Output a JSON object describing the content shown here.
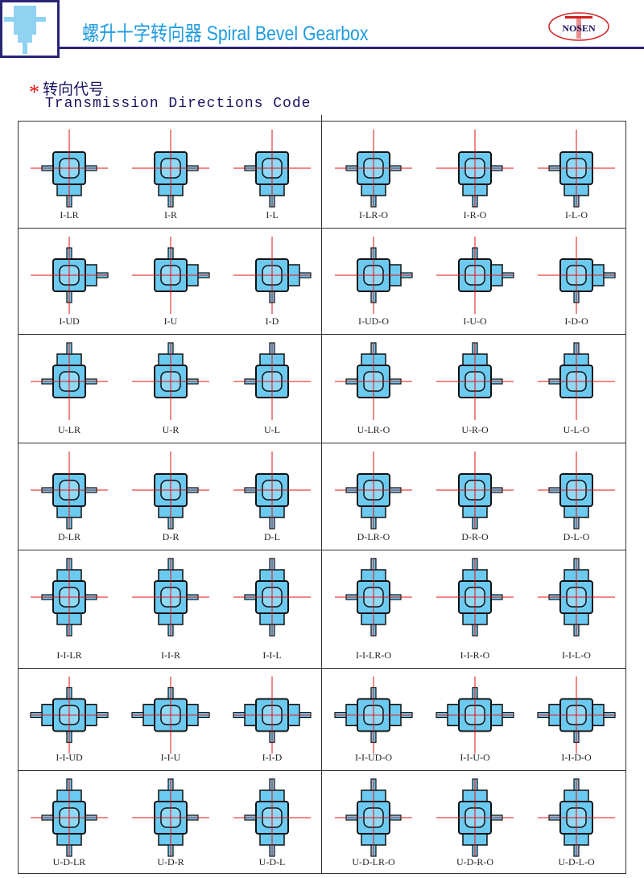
{
  "header": {
    "title": "螺升十字转向器 Spiral Bevel Gearbox",
    "logo_text": "NOSEN",
    "section_cn": "转向代号",
    "section_en": "Transmission Directions Code",
    "accent": "#1e9be0",
    "body_color": "#6ccaf0",
    "axis_color": "#e01010"
  },
  "rows": [
    {
      "bosses": [
        "bottom"
      ],
      "cells": [
        {
          "label": "I-LR",
          "shafts": [
            "left",
            "right",
            "bottom"
          ]
        },
        {
          "label": "I-R",
          "shafts": [
            "right",
            "bottom"
          ]
        },
        {
          "label": "I-L",
          "shafts": [
            "left",
            "bottom"
          ]
        },
        {
          "label": "I-LR-O",
          "shafts": [
            "left",
            "right",
            "bottom"
          ]
        },
        {
          "label": "I-R-O",
          "shafts": [
            "right",
            "bottom"
          ]
        },
        {
          "label": "I-L-O",
          "shafts": [
            "left",
            "bottom"
          ]
        }
      ]
    },
    {
      "bosses": [
        "right"
      ],
      "cells": [
        {
          "label": "I-UD",
          "shafts": [
            "top",
            "bottom",
            "right"
          ]
        },
        {
          "label": "I-U",
          "shafts": [
            "top",
            "right"
          ]
        },
        {
          "label": "I-D",
          "shafts": [
            "bottom",
            "right"
          ]
        },
        {
          "label": "I-UD-O",
          "shafts": [
            "top",
            "bottom",
            "right"
          ]
        },
        {
          "label": "I-U-O",
          "shafts": [
            "top",
            "right"
          ]
        },
        {
          "label": "I-D-O",
          "shafts": [
            "bottom",
            "right"
          ]
        }
      ]
    },
    {
      "bosses": [
        "top"
      ],
      "cells": [
        {
          "label": "U-LR",
          "shafts": [
            "left",
            "right",
            "top"
          ]
        },
        {
          "label": "U-R",
          "shafts": [
            "right",
            "top"
          ]
        },
        {
          "label": "U-L",
          "shafts": [
            "left",
            "top"
          ]
        },
        {
          "label": "U-LR-O",
          "shafts": [
            "left",
            "right",
            "top"
          ]
        },
        {
          "label": "U-R-O",
          "shafts": [
            "right",
            "top"
          ]
        },
        {
          "label": "U-L-O",
          "shafts": [
            "left",
            "top"
          ]
        }
      ]
    },
    {
      "bosses": [
        "bottom"
      ],
      "cells": [
        {
          "label": "D-LR",
          "shafts": [
            "left",
            "right",
            "bottom"
          ]
        },
        {
          "label": "D-R",
          "shafts": [
            "right",
            "bottom"
          ]
        },
        {
          "label": "D-L",
          "shafts": [
            "left",
            "bottom"
          ]
        },
        {
          "label": "D-LR-O",
          "shafts": [
            "left",
            "right",
            "bottom"
          ]
        },
        {
          "label": "D-R-O",
          "shafts": [
            "right",
            "bottom"
          ]
        },
        {
          "label": "D-L-O",
          "shafts": [
            "left",
            "bottom"
          ]
        }
      ]
    },
    {
      "bosses": [
        "top",
        "bottom"
      ],
      "cells": [
        {
          "label": "I-I-LR",
          "shafts": [
            "left",
            "right",
            "top",
            "bottom"
          ]
        },
        {
          "label": "I-I-R",
          "shafts": [
            "right",
            "top",
            "bottom"
          ]
        },
        {
          "label": "I-I-L",
          "shafts": [
            "left",
            "top",
            "bottom"
          ]
        },
        {
          "label": "I-I-LR-O",
          "shafts": [
            "left",
            "right",
            "top",
            "bottom"
          ]
        },
        {
          "label": "I-I-R-O",
          "shafts": [
            "right",
            "top",
            "bottom"
          ]
        },
        {
          "label": "I-I-L-O",
          "shafts": [
            "left",
            "top",
            "bottom"
          ]
        }
      ]
    },
    {
      "bosses": [
        "left",
        "right"
      ],
      "cells": [
        {
          "label": "I-I-UD",
          "shafts": [
            "left",
            "right",
            "top",
            "bottom"
          ]
        },
        {
          "label": "I-I-U",
          "shafts": [
            "left",
            "right",
            "top"
          ]
        },
        {
          "label": "I-I-D",
          "shafts": [
            "left",
            "right",
            "bottom"
          ]
        },
        {
          "label": "I-I-UD-O",
          "shafts": [
            "left",
            "right",
            "top",
            "bottom"
          ]
        },
        {
          "label": "I-I-U-O",
          "shafts": [
            "left",
            "right",
            "top"
          ]
        },
        {
          "label": "I-I-D-O",
          "shafts": [
            "left",
            "right",
            "bottom"
          ]
        }
      ]
    },
    {
      "bosses": [
        "top",
        "bottom"
      ],
      "cells": [
        {
          "label": "U-D-LR",
          "shafts": [
            "left",
            "right",
            "top",
            "bottom"
          ]
        },
        {
          "label": "U-D-R",
          "shafts": [
            "right",
            "top",
            "bottom"
          ]
        },
        {
          "label": "U-D-L",
          "shafts": [
            "left",
            "top",
            "bottom"
          ]
        },
        {
          "label": "U-D-LR-O",
          "shafts": [
            "left",
            "right",
            "top",
            "bottom"
          ]
        },
        {
          "label": "U-D-R-O",
          "shafts": [
            "right",
            "top",
            "bottom"
          ]
        },
        {
          "label": "U-D-L-O",
          "shafts": [
            "left",
            "top",
            "bottom"
          ]
        }
      ]
    }
  ]
}
